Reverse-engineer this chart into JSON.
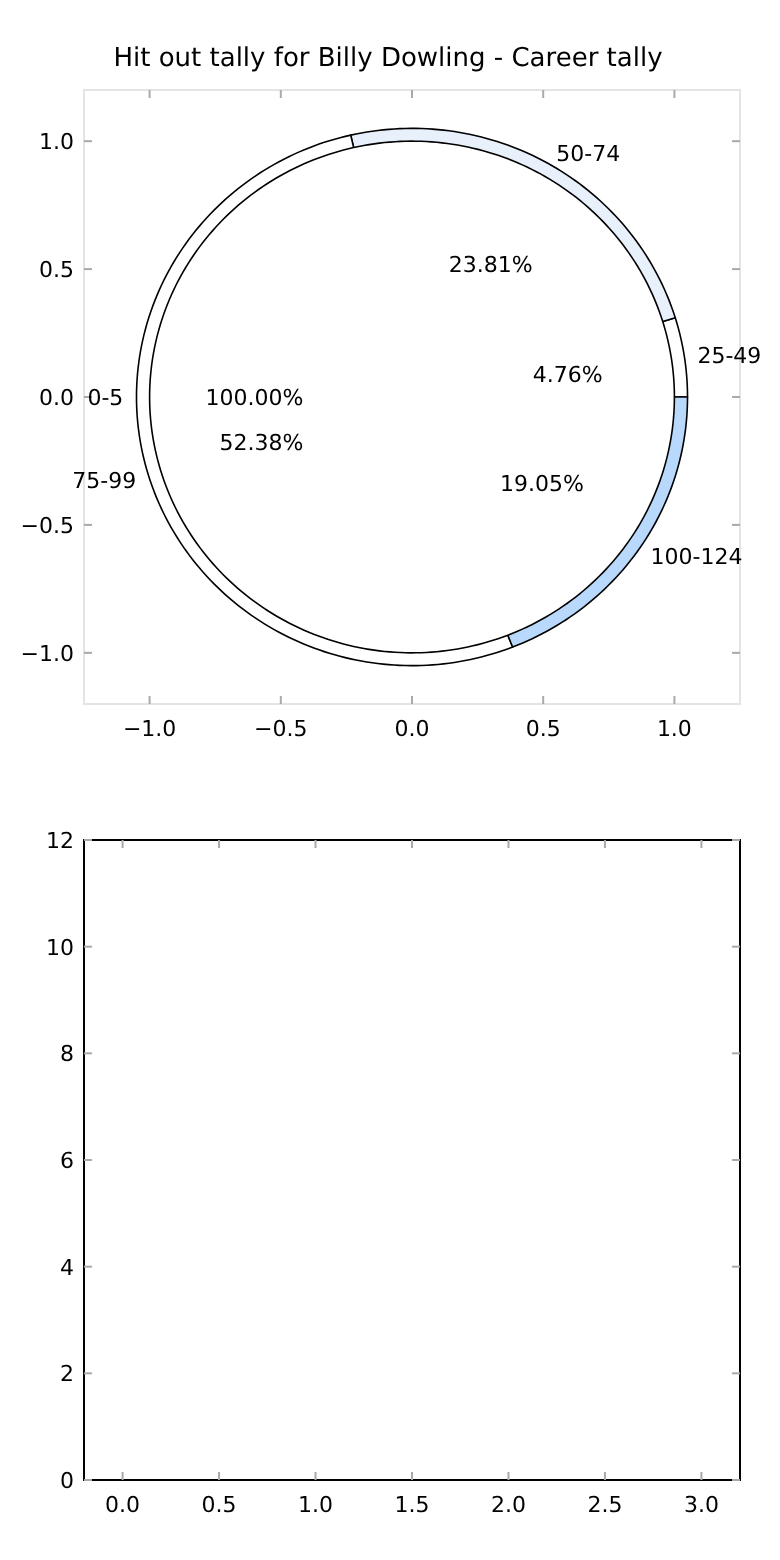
{
  "chart_data": [
    {
      "type": "scatter",
      "title": "Hit out tally for Billy Dowling - Career tally",
      "xlim": [
        -1.25,
        1.25
      ],
      "ylim": [
        -1.2,
        1.2
      ],
      "xticks": [
        {
          "value": -1,
          "label": "−1.0"
        },
        {
          "value": -0.5,
          "label": "−0.5"
        },
        {
          "value": 0,
          "label": "0.0"
        },
        {
          "value": 0.5,
          "label": "0.5"
        },
        {
          "value": 1,
          "label": "1.0"
        }
      ],
      "yticks": [
        {
          "value": -1,
          "label": "−1.0"
        },
        {
          "value": -0.5,
          "label": "−0.5"
        },
        {
          "value": 0,
          "label": "0.0"
        },
        {
          "value": 0.5,
          "label": "0.5"
        },
        {
          "value": 1,
          "label": "1.0"
        }
      ]
    },
    {
      "type": "pie",
      "categories": [
        "0-5"
      ],
      "values": [
        100
      ],
      "colors": [
        "#ffffff"
      ],
      "value_labels": [
        "100.00%"
      ]
    },
    {
      "type": "pie",
      "categories": [
        "25-49",
        "50-74",
        "75-99",
        "100-124"
      ],
      "values": [
        4.76,
        23.81,
        52.38,
        19.05
      ],
      "colors": [
        "#ffffff",
        "#e8f0fc",
        "#ffffff",
        "#b8d8fc"
      ],
      "value_labels": [
        "4.76%",
        "23.81%",
        "52.38%",
        "19.05%"
      ]
    },
    {
      "type": "scatter",
      "xlim": [
        -0.2,
        3.2
      ],
      "ylim": [
        0,
        12
      ],
      "xticks": [
        {
          "value": 0,
          "label": "0.0"
        },
        {
          "value": 0.5,
          "label": "0.5"
        },
        {
          "value": 1,
          "label": "1.0"
        },
        {
          "value": 1.5,
          "label": "1.5"
        },
        {
          "value": 2,
          "label": "2.0"
        },
        {
          "value": 2.5,
          "label": "2.5"
        },
        {
          "value": 3,
          "label": "3.0"
        }
      ],
      "yticks": [
        0,
        2,
        4,
        6,
        8,
        10,
        12
      ]
    }
  ]
}
